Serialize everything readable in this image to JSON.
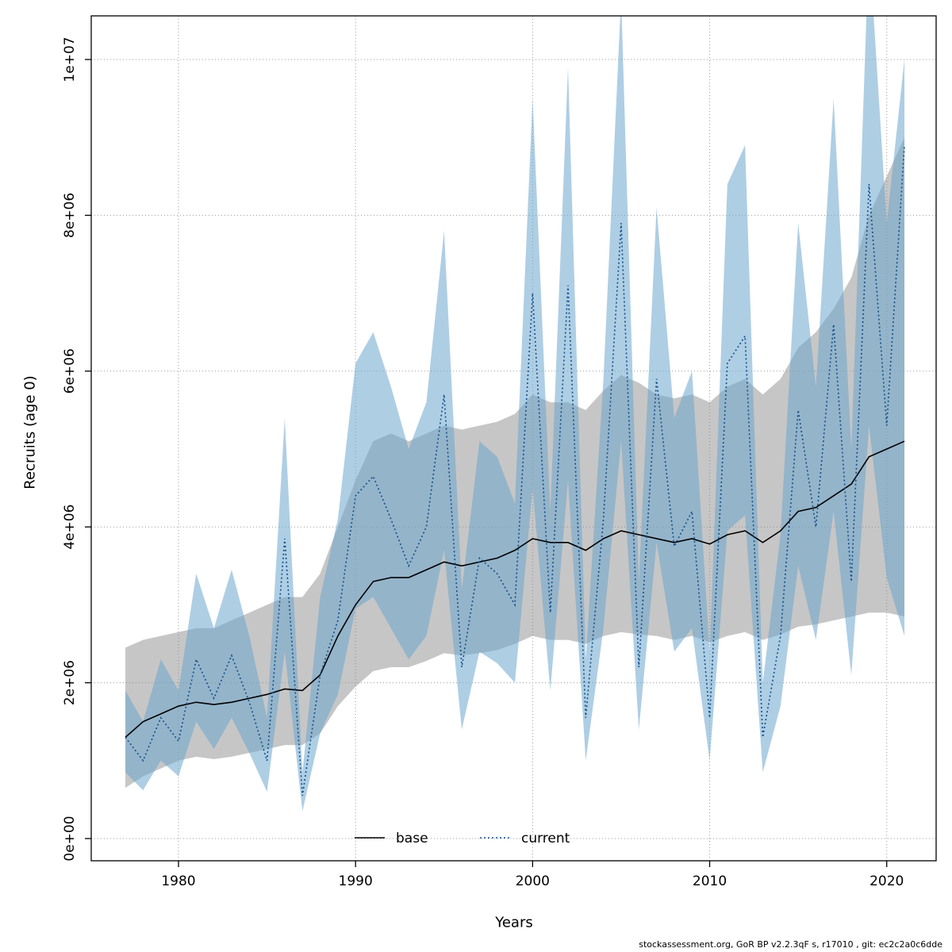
{
  "footer": {
    "credit": "stockassessment.org, GoR BP v2.2.3qF s, r17010 , git: ec2c2a0c6dde"
  },
  "chart_data": {
    "type": "line",
    "title": "",
    "xlabel": "Years",
    "ylabel": "Recruits (age 0)",
    "grid": true,
    "xlim": [
      1975,
      2023
    ],
    "ylim": [
      0,
      10000000
    ],
    "x_ticks": [
      1980,
      1990,
      2000,
      2010,
      2020
    ],
    "y_ticks": [
      0,
      2000000,
      4000000,
      6000000,
      8000000,
      10000000
    ],
    "y_tick_labels": [
      "0e+00",
      "2e+06",
      "4e+06",
      "6e+06",
      "8e+06",
      "1e+07"
    ],
    "legend": {
      "position": "bottom-center",
      "entries": [
        {
          "label": "base",
          "color": "#000000",
          "style": "solid"
        },
        {
          "label": "current",
          "color": "#104e8b",
          "style": "dotted"
        }
      ]
    },
    "years": [
      1977,
      1978,
      1979,
      1980,
      1981,
      1982,
      1983,
      1984,
      1985,
      1986,
      1987,
      1988,
      1989,
      1990,
      1991,
      1992,
      1993,
      1994,
      1995,
      1996,
      1997,
      1998,
      1999,
      2000,
      2001,
      2002,
      2003,
      2004,
      2005,
      2006,
      2007,
      2008,
      2009,
      2010,
      2011,
      2012,
      2013,
      2014,
      2015,
      2016,
      2017,
      2018,
      2019,
      2020,
      2021
    ],
    "series": [
      {
        "name": "base",
        "color": "#000000",
        "style": "solid",
        "values": [
          1300000,
          1500000,
          1600000,
          1700000,
          1750000,
          1720000,
          1750000,
          1800000,
          1850000,
          1920000,
          1900000,
          2100000,
          2600000,
          3000000,
          3300000,
          3350000,
          3350000,
          3450000,
          3550000,
          3500000,
          3550000,
          3600000,
          3700000,
          3850000,
          3800000,
          3800000,
          3700000,
          3850000,
          3950000,
          3900000,
          3850000,
          3800000,
          3850000,
          3780000,
          3900000,
          3950000,
          3800000,
          3950000,
          4200000,
          4250000,
          4400000,
          4550000,
          4900000,
          5000000,
          5100000
        ],
        "band": {
          "color": "rgba(128,128,128,0.45)",
          "lower": [
            650000,
            800000,
            900000,
            1000000,
            1050000,
            1020000,
            1050000,
            1100000,
            1150000,
            1200000,
            1200000,
            1350000,
            1700000,
            1950000,
            2150000,
            2200000,
            2200000,
            2280000,
            2380000,
            2350000,
            2380000,
            2420000,
            2500000,
            2600000,
            2550000,
            2550000,
            2500000,
            2600000,
            2650000,
            2620000,
            2600000,
            2550000,
            2600000,
            2520000,
            2600000,
            2650000,
            2550000,
            2620000,
            2720000,
            2750000,
            2800000,
            2850000,
            2900000,
            2900000,
            2850000
          ],
          "upper": [
            2450000,
            2550000,
            2600000,
            2650000,
            2700000,
            2700000,
            2800000,
            2900000,
            3000000,
            3100000,
            3100000,
            3400000,
            4000000,
            4600000,
            5100000,
            5200000,
            5100000,
            5200000,
            5300000,
            5250000,
            5300000,
            5350000,
            5450000,
            5700000,
            5600000,
            5600000,
            5500000,
            5750000,
            5950000,
            5850000,
            5700000,
            5650000,
            5700000,
            5600000,
            5800000,
            5900000,
            5700000,
            5900000,
            6300000,
            6500000,
            6800000,
            7200000,
            8000000,
            8500000,
            9000000
          ]
        }
      },
      {
        "name": "current",
        "color": "#104e8b",
        "style": "dotted",
        "values": [
          1300000,
          1000000,
          1550000,
          1250000,
          2300000,
          1800000,
          2350000,
          1750000,
          1000000,
          3850000,
          550000,
          2100000,
          2800000,
          4400000,
          4650000,
          4100000,
          3500000,
          4000000,
          5700000,
          2200000,
          3600000,
          3400000,
          3000000,
          7000000,
          2900000,
          7100000,
          1550000,
          4100000,
          7900000,
          2200000,
          5900000,
          3750000,
          4200000,
          1550000,
          6100000,
          6450000,
          1300000,
          2600000,
          5500000,
          4000000,
          6600000,
          3300000,
          8400000,
          5300000,
          8900000
        ],
        "band": {
          "color": "rgba(108,166,205,0.55)",
          "lower": [
            850000,
            620000,
            1000000,
            800000,
            1500000,
            1150000,
            1550000,
            1100000,
            600000,
            2400000,
            350000,
            1350000,
            1850000,
            2950000,
            3100000,
            2700000,
            2300000,
            2600000,
            3700000,
            1400000,
            2400000,
            2250000,
            2000000,
            4500000,
            1900000,
            4600000,
            1000000,
            2700000,
            5100000,
            1400000,
            3800000,
            2400000,
            2700000,
            1000000,
            3950000,
            4150000,
            850000,
            1700000,
            3500000,
            2550000,
            4200000,
            2100000,
            5300000,
            3350000,
            2600000
          ],
          "upper": [
            1900000,
            1500000,
            2300000,
            1900000,
            3400000,
            2700000,
            3450000,
            2600000,
            1550000,
            5400000,
            850000,
            3100000,
            4100000,
            6100000,
            6500000,
            5800000,
            5000000,
            5600000,
            7800000,
            3200000,
            5100000,
            4900000,
            4300000,
            9500000,
            4200000,
            9900000,
            2300000,
            5900000,
            10800000,
            3300000,
            8100000,
            5400000,
            6000000,
            2400000,
            8400000,
            8900000,
            2000000,
            3900000,
            7900000,
            5800000,
            9500000,
            5000000,
            11500000,
            7900000,
            10000000
          ]
        }
      }
    ]
  }
}
